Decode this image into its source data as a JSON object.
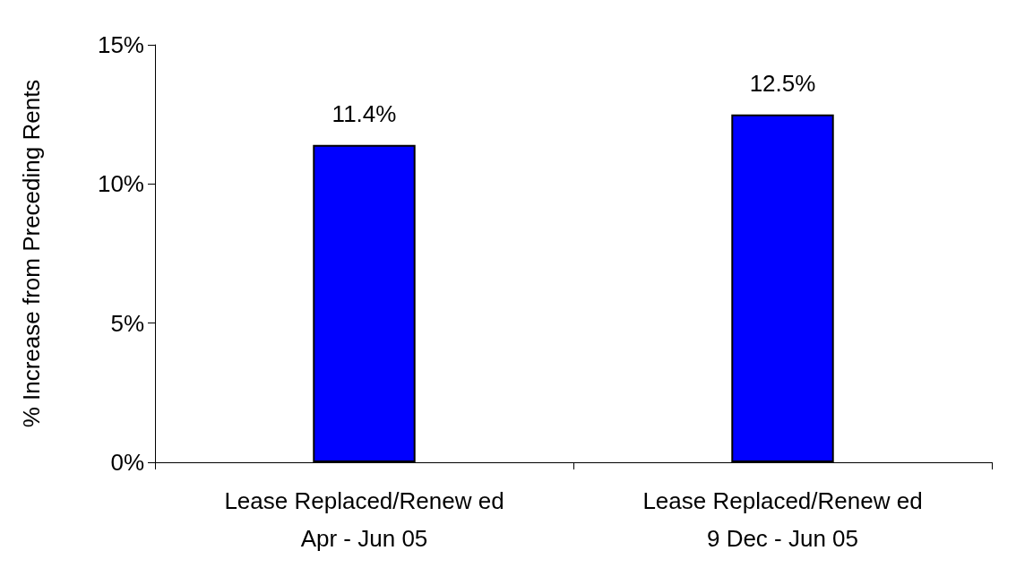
{
  "chart_data": {
    "type": "bar",
    "ylabel": "% Increase from Preceding Rents",
    "categories": [
      "Lease Replaced/Renew ed\nApr - Jun 05",
      "Lease Replaced/Renew ed\n9 Dec - Jun 05"
    ],
    "values": [
      11.4,
      12.5
    ],
    "color": "#0000ff",
    "value_labels": [
      "11.4%",
      "12.5%"
    ],
    "ylim": [
      0,
      15
    ],
    "yticks": [
      {
        "value": 0,
        "label": "0%"
      },
      {
        "value": 5,
        "label": "5%"
      },
      {
        "value": 10,
        "label": "10%"
      },
      {
        "value": 15,
        "label": "15%"
      }
    ],
    "grid": false
  }
}
